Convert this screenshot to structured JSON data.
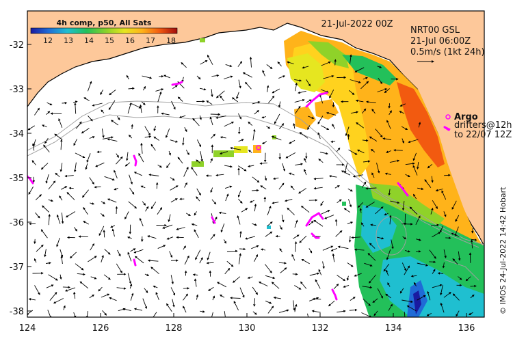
{
  "map": {
    "title_date": "21-Jul-2022 00Z",
    "product": "NRT00 GSL",
    "current_time": "21-Jul 06:00Z",
    "current_scale": "0.5m/s (1kt 24h)",
    "colorbar_title": "4h comp, p50, All Sats",
    "colorbar_ticks": [
      "12",
      "13",
      "14",
      "15",
      "16",
      "17",
      "18"
    ],
    "legend_argo": "Argo",
    "legend_drifters": "drifters@12h",
    "legend_to": "to 22/07 12Z",
    "credit": "© IMOS 24-Jul-2022 14:42 Hobart",
    "x_ticks": [
      "124",
      "126",
      "128",
      "130",
      "132",
      "134",
      "136"
    ],
    "y_ticks": [
      "-32",
      "-33",
      "-34",
      "-35",
      "-36",
      "-37",
      "-38"
    ],
    "colors": {
      "land": "#fdc89a",
      "argo": "#ff00ff",
      "arrow": "#000000",
      "bathy": "#a0a0a0"
    }
  }
}
